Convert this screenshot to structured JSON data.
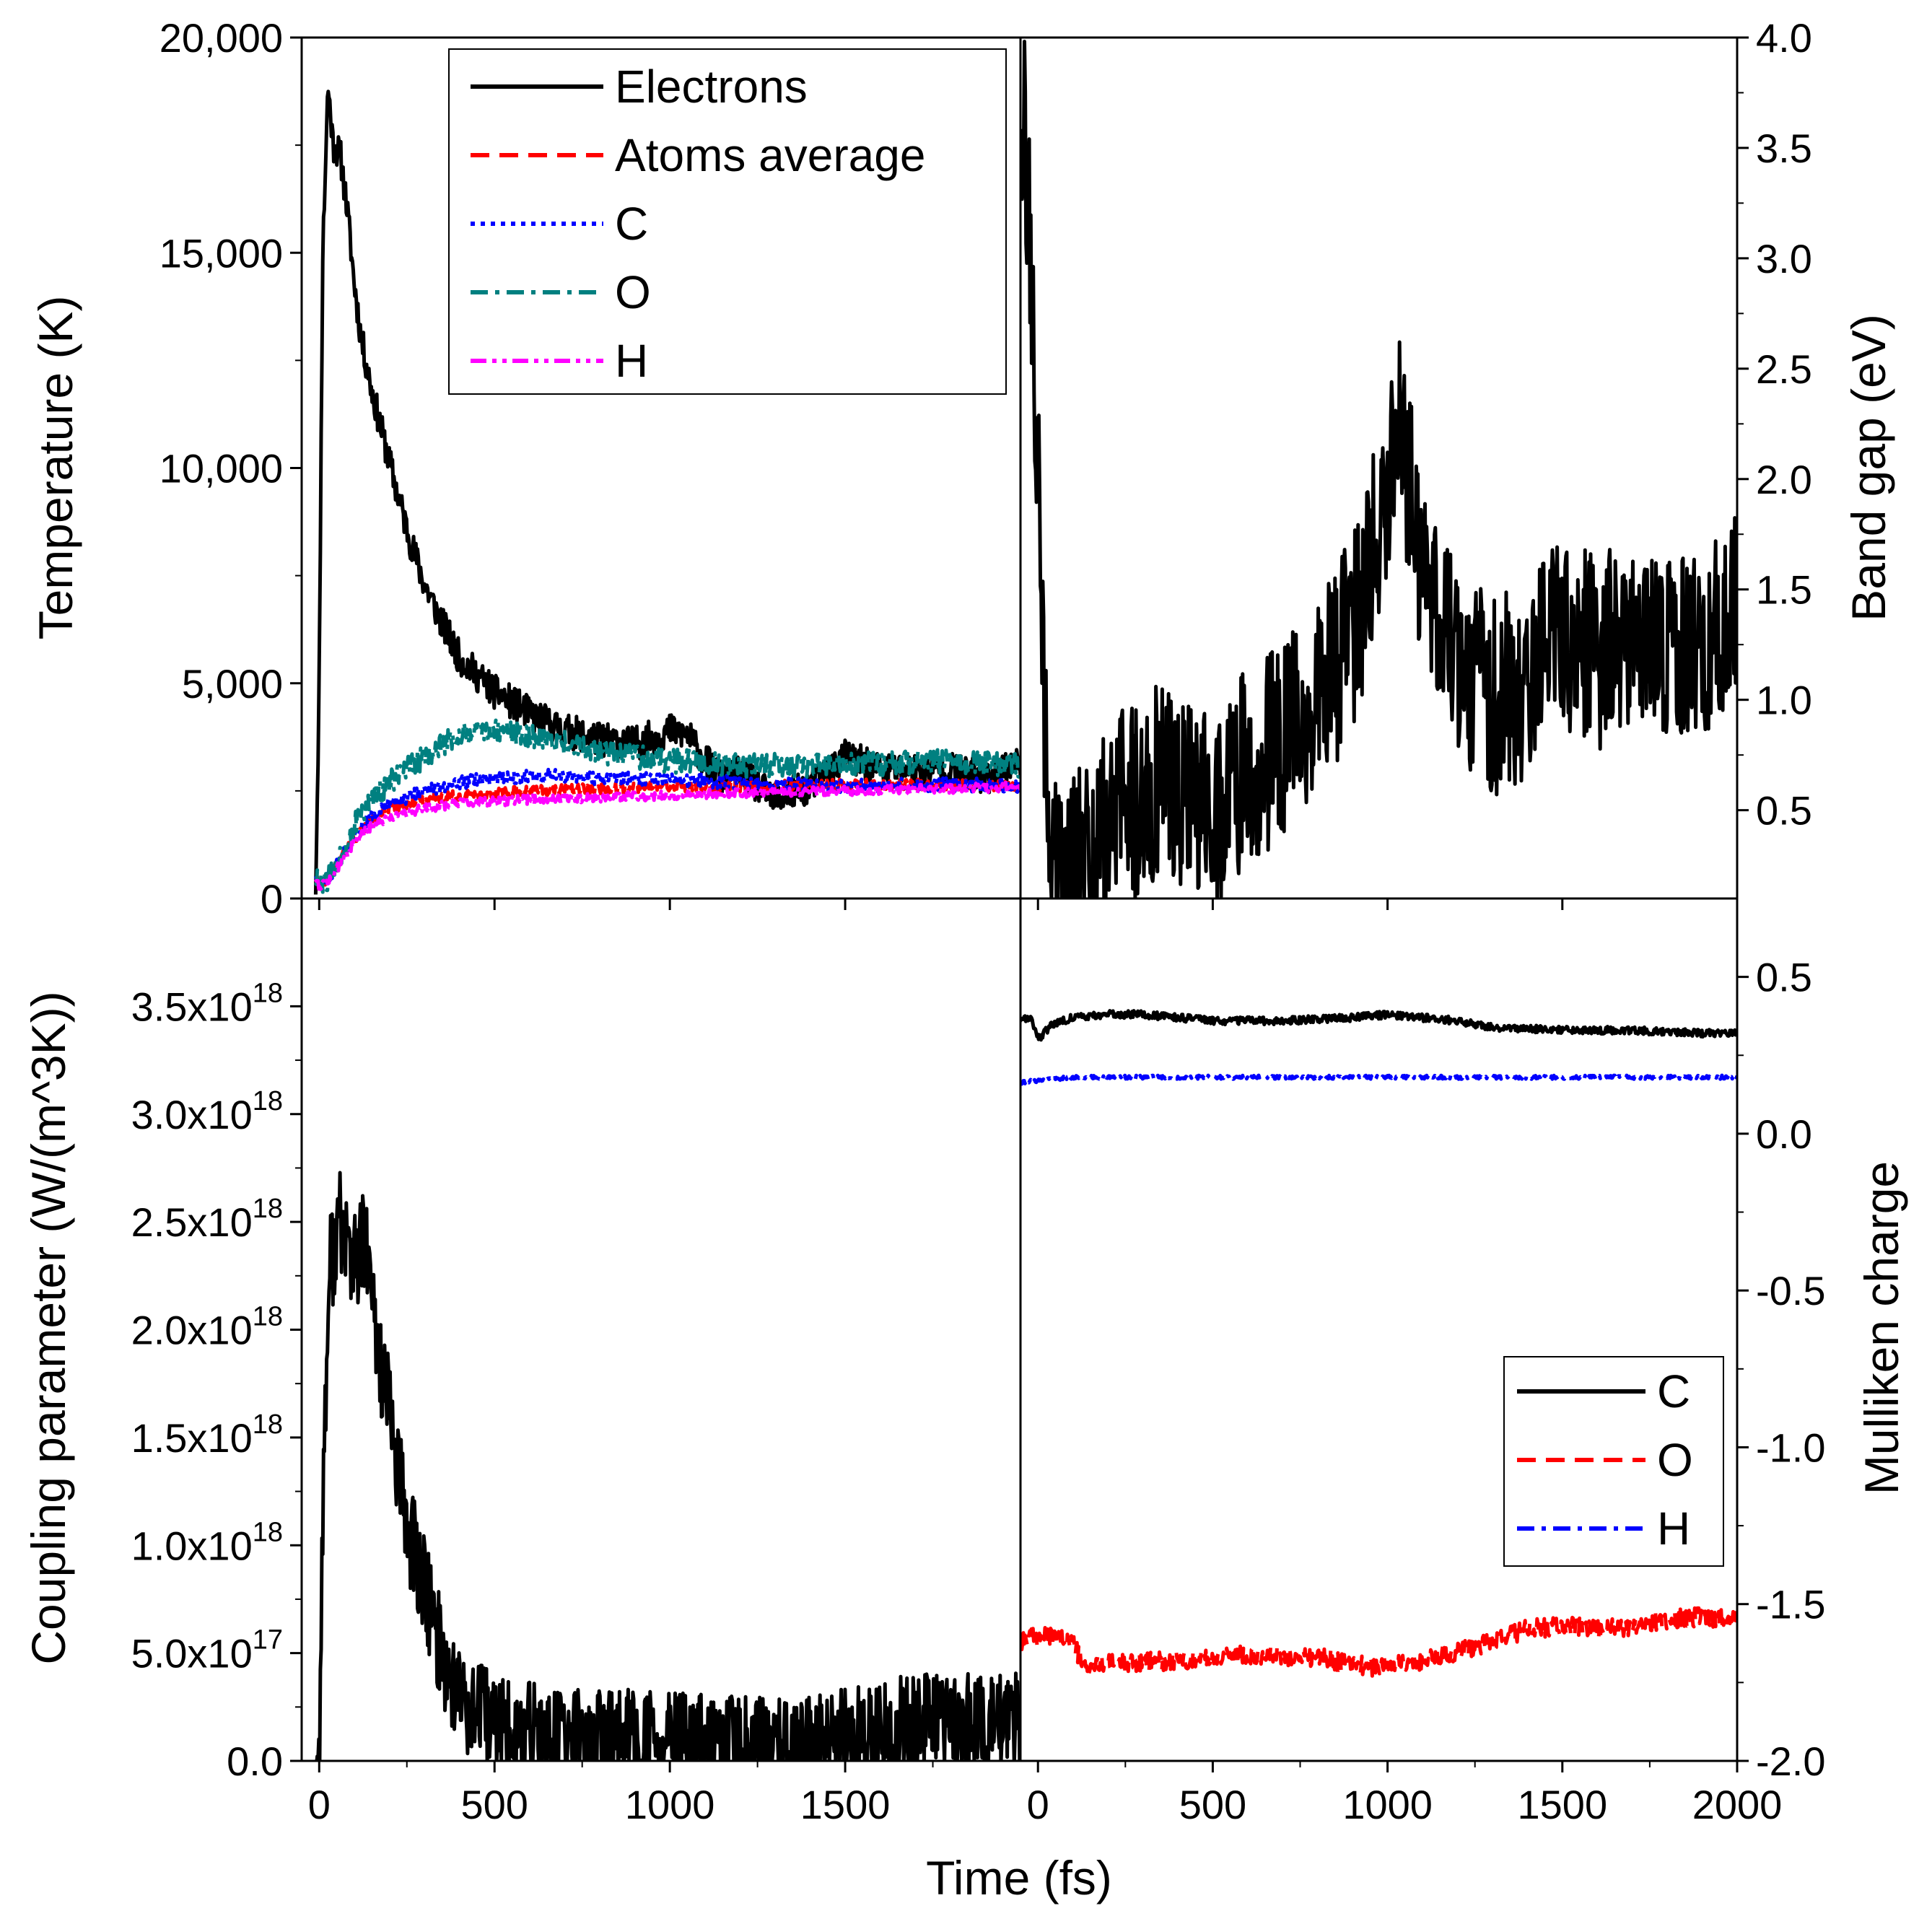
{
  "figure": {
    "shared_xlabel": "Time (fs)"
  },
  "chart_data": [
    {
      "id": "temperature",
      "type": "line",
      "position": "top-left",
      "ylabel": "Temperature (K)",
      "xlim": [
        -50,
        2000
      ],
      "ylim": [
        0,
        20000
      ],
      "xticks": [
        0,
        500,
        1000,
        1500
      ],
      "xtick_labels": [
        "0",
        "500",
        "1000",
        "1500"
      ],
      "yticks": [
        0,
        5000,
        10000,
        15000,
        20000
      ],
      "ytick_labels": [
        "0",
        "5,000",
        "10,000",
        "15,000",
        "20,000"
      ],
      "legend": {
        "placement": "top-right"
      },
      "series": [
        {
          "name": "Electrons",
          "color": "#000000",
          "style": "solid",
          "noise": 400,
          "seed": 11,
          "x": [
            -10,
            0,
            10,
            25,
            40,
            60,
            80,
            100,
            120,
            150,
            180,
            220,
            260,
            300,
            350,
            400,
            450,
            500,
            560,
            620,
            700,
            800,
            900,
            1000,
            1050,
            1100,
            1150,
            1200,
            1300,
            1400,
            1500,
            1600,
            1700,
            1800,
            1900,
            2000
          ],
          "y": [
            300,
            5000,
            15000,
            18900,
            17500,
            17300,
            16000,
            14300,
            13000,
            11800,
            10800,
            9500,
            8300,
            7300,
            6400,
            5600,
            5200,
            4800,
            4500,
            4200,
            3900,
            3700,
            3600,
            3900,
            3800,
            3200,
            2800,
            2900,
            2300,
            2600,
            3300,
            3000,
            3000,
            3000,
            2800,
            3200
          ]
        },
        {
          "name": "Atoms average",
          "color": "#ff0000",
          "style": "dashed",
          "noise": 120,
          "seed": 22,
          "x": [
            -10,
            0,
            30,
            60,
            100,
            150,
            200,
            300,
            400,
            500,
            600,
            800,
            1000,
            1200,
            1500,
            1800,
            2000
          ],
          "y": [
            500,
            300,
            500,
            900,
            1400,
            1800,
            2100,
            2300,
            2400,
            2450,
            2500,
            2550,
            2600,
            2600,
            2650,
            2650,
            2600
          ]
        },
        {
          "name": "C",
          "color": "#0000ff",
          "style": "dotted",
          "noise": 160,
          "seed": 33,
          "x": [
            -10,
            0,
            30,
            60,
            100,
            150,
            200,
            300,
            400,
            500,
            600,
            800,
            1000,
            1200,
            1500,
            1800,
            2000
          ],
          "y": [
            600,
            300,
            500,
            900,
            1500,
            1900,
            2200,
            2500,
            2700,
            2800,
            2850,
            2800,
            2750,
            2700,
            2600,
            2650,
            2600
          ]
        },
        {
          "name": "O",
          "color": "#008080",
          "style": "dashdot",
          "noise": 280,
          "seed": 44,
          "x": [
            -10,
            0,
            30,
            60,
            100,
            150,
            200,
            250,
            300,
            400,
            500,
            600,
            700,
            800,
            1000,
            1200,
            1500,
            1800,
            2000
          ],
          "y": [
            500,
            300,
            500,
            1000,
            1700,
            2300,
            2700,
            3000,
            3300,
            3800,
            3900,
            3800,
            3600,
            3400,
            3200,
            3100,
            3100,
            3200,
            3100
          ]
        },
        {
          "name": "H",
          "color": "#ff00ff",
          "style": "dashdotdot",
          "noise": 110,
          "seed": 55,
          "x": [
            -10,
            0,
            30,
            60,
            100,
            150,
            200,
            300,
            400,
            500,
            600,
            800,
            1000,
            1200,
            1500,
            1800,
            2000
          ],
          "y": [
            500,
            300,
            450,
            800,
            1300,
            1700,
            1900,
            2100,
            2200,
            2250,
            2300,
            2350,
            2400,
            2450,
            2500,
            2550,
            2600
          ]
        }
      ]
    },
    {
      "id": "band-gap",
      "type": "line",
      "position": "top-right",
      "ylabel": "Band gap (eV)",
      "xlim": [
        -50,
        2000
      ],
      "ylim": [
        0.1,
        4.0
      ],
      "yticks": [
        0.5,
        1.0,
        1.5,
        2.0,
        2.5,
        3.0,
        3.5,
        4.0
      ],
      "ytick_labels": [
        "0.5",
        "1.0",
        "1.5",
        "2.0",
        "2.5",
        "3.0",
        "3.5",
        "4.0"
      ],
      "series": [
        {
          "name": "Band gap",
          "color": "#000000",
          "style": "solid",
          "noise": 0.45,
          "seed": 66,
          "x": [
            -50,
            -40,
            -20,
            0,
            20,
            40,
            60,
            80,
            100,
            150,
            200,
            250,
            300,
            350,
            400,
            450,
            500,
            600,
            700,
            800,
            900,
            950,
            1000,
            1030,
            1060,
            1100,
            1200,
            1300,
            1400,
            1500,
            1600,
            1700,
            1800,
            1900,
            2000
          ],
          "y": [
            3.8,
            3.6,
            3.0,
            2.0,
            0.8,
            0.3,
            0.15,
            0.2,
            0.25,
            0.3,
            0.4,
            0.6,
            0.5,
            0.7,
            0.6,
            0.6,
            0.5,
            0.7,
            0.8,
            1.0,
            1.3,
            1.6,
            2.0,
            2.3,
            2.0,
            1.6,
            1.2,
            1.0,
            1.1,
            1.3,
            1.2,
            1.3,
            1.2,
            1.3,
            1.4
          ]
        }
      ]
    },
    {
      "id": "coupling",
      "type": "line",
      "position": "bottom-left",
      "ylabel": "Coupling parameter (W/(m^3K))",
      "xlim": [
        -50,
        2000
      ],
      "ylim": [
        0,
        4e+18
      ],
      "xticks": [
        0,
        500,
        1000,
        1500
      ],
      "xtick_labels": [
        "0",
        "500",
        "1000",
        "1500"
      ],
      "yticks": [
        0,
        5e+17,
        1e+18,
        1.5e+18,
        2e+18,
        2.5e+18,
        3e+18,
        3.5e+18
      ],
      "ytick_mantissas": [
        "0.0",
        "5.0x10",
        "1.0x10",
        "1.5x10",
        "2.0x10",
        "2.5x10",
        "3.0x10",
        "3.5x10"
      ],
      "ytick_exponents": [
        "",
        "17",
        "18",
        "18",
        "18",
        "18",
        "18",
        "18"
      ],
      "series": [
        {
          "name": "Coupling",
          "color": "#000000",
          "style": "solid",
          "noise": 2.5e+17,
          "seed": 77,
          "x": [
            -10,
            0,
            10,
            30,
            60,
            100,
            130,
            160,
            200,
            250,
            300,
            350,
            400,
            450,
            500,
            600,
            700,
            800,
            900,
            1000,
            1100,
            1200,
            1300,
            1400,
            1500,
            1600,
            1700,
            1800,
            1900,
            2000
          ],
          "y": [
            0,
            0,
            1.2e+18,
            2.3e+18,
            2.5e+18,
            2.3e+18,
            2.4e+18,
            2e+18,
            1.6e+18,
            1.1e+18,
            8e+17,
            5e+17,
            3e+17,
            2.2e+17,
            1.6e+17,
            1.2e+17,
            1e+17,
            9e+16,
            8e+16,
            7e+16,
            6e+16,
            5e+16,
            4e+16,
            5e+16,
            1e+17,
            1.3e+17,
            1.5e+17,
            1.6e+17,
            1.6e+17,
            1.7e+17
          ]
        }
      ]
    },
    {
      "id": "mulliken",
      "type": "line",
      "position": "bottom-right",
      "ylabel": "Mulliken charge",
      "xlim": [
        -50,
        2000
      ],
      "ylim": [
        -2.0,
        0.75
      ],
      "xticks": [
        0,
        500,
        1000,
        1500,
        2000
      ],
      "xtick_labels": [
        "0",
        "500",
        "1000",
        "1500",
        "2000"
      ],
      "yticks": [
        -2.0,
        -1.5,
        -1.0,
        -0.5,
        0.0,
        0.5
      ],
      "ytick_labels": [
        "-2.0",
        "-1.5",
        "-1.0",
        "-0.5",
        "0.0",
        "0.5"
      ],
      "legend": {
        "placement": "bottom-right"
      },
      "series": [
        {
          "name": "C",
          "color": "#000000",
          "style": "solid",
          "noise": 0.012,
          "seed": 88,
          "x": [
            -60,
            -20,
            0,
            10,
            40,
            100,
            200,
            300,
            500,
            700,
            900,
            1000,
            1100,
            1200,
            1300,
            1500,
            1700,
            1900,
            2000
          ],
          "y": [
            0.37,
            0.37,
            0.31,
            0.31,
            0.35,
            0.37,
            0.38,
            0.38,
            0.36,
            0.36,
            0.37,
            0.38,
            0.37,
            0.36,
            0.34,
            0.33,
            0.33,
            0.32,
            0.32
          ]
        },
        {
          "name": "O",
          "color": "#ff0000",
          "style": "dashed",
          "noise": 0.03,
          "seed": 99,
          "x": [
            -60,
            0,
            100,
            130,
            200,
            400,
            600,
            800,
            950,
            1100,
            1200,
            1300,
            1400,
            1500,
            1600,
            1700,
            1800,
            1900,
            2000
          ],
          "y": [
            -1.62,
            -1.6,
            -1.62,
            -1.7,
            -1.69,
            -1.68,
            -1.66,
            -1.67,
            -1.7,
            -1.68,
            -1.65,
            -1.62,
            -1.58,
            -1.57,
            -1.58,
            -1.57,
            -1.55,
            -1.54,
            -1.55
          ]
        },
        {
          "name": "H",
          "color": "#0000ff",
          "style": "dashdot",
          "noise": 0.006,
          "seed": 111,
          "x": [
            -60,
            0,
            100,
            500,
            1000,
            1500,
            2000
          ],
          "y": [
            0.16,
            0.17,
            0.18,
            0.18,
            0.18,
            0.18,
            0.18
          ]
        }
      ]
    }
  ]
}
